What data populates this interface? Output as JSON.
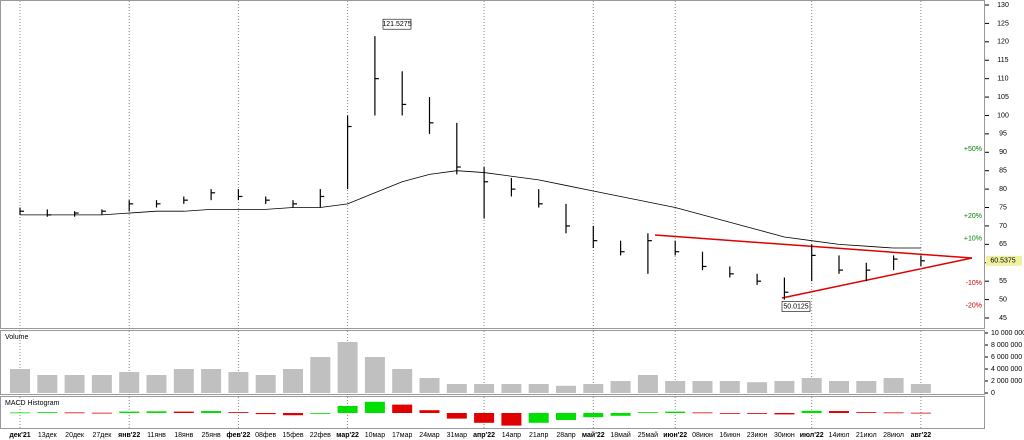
{
  "chart_data": [
    {
      "type": "ohlc",
      "categories": [
        "дек'21",
        "13дек",
        "20дек",
        "27дек",
        "янв'22",
        "11янв",
        "18янв",
        "25янв",
        "фев'22",
        "08фев",
        "15фев",
        "22фев",
        "мар'22",
        "10мар",
        "17мар",
        "24мар",
        "31мар",
        "апр'22",
        "14апр",
        "21апр",
        "28апр",
        "май'22",
        "18май",
        "25май",
        "июн'22",
        "08июн",
        "16июн",
        "23июн",
        "30июн",
        "июл'22",
        "14июл",
        "21июл",
        "28июл",
        "авг'22"
      ],
      "high": [
        75,
        74.5,
        74,
        74.5,
        77,
        77,
        78,
        80,
        80,
        78,
        77,
        80,
        100,
        121.5275,
        112,
        105,
        98,
        86,
        83,
        80,
        76,
        70,
        66,
        68,
        66,
        63,
        59,
        57,
        56,
        65,
        62,
        60,
        62,
        62
      ],
      "low": [
        73,
        72.5,
        72.5,
        73,
        74,
        75,
        76,
        77,
        77,
        76,
        75,
        75,
        80,
        100,
        100,
        95,
        84,
        72,
        78,
        75,
        68,
        64,
        62,
        57,
        62,
        58,
        56,
        54,
        50.0125,
        55,
        57,
        55,
        58,
        59
      ],
      "close": [
        74,
        73,
        73.5,
        74,
        76,
        76,
        77,
        79,
        78,
        77,
        76,
        78,
        97,
        110,
        103,
        98,
        86,
        82,
        80,
        76,
        70,
        66,
        63,
        66,
        63,
        59,
        57,
        55,
        52,
        62,
        58,
        58,
        61,
        60.5375
      ],
      "ma": [
        73,
        73,
        73,
        73,
        73.5,
        74,
        74,
        74.5,
        74.5,
        74.5,
        75,
        75,
        76,
        79,
        82,
        84,
        85,
        84.5,
        83.5,
        82.5,
        81,
        79.5,
        78,
        76.5,
        75,
        73,
        71,
        69,
        67,
        66,
        65,
        64.5,
        64,
        64
      ],
      "color": "#000000",
      "ma_color": "#000000",
      "ylim": [
        45,
        130
      ],
      "yticks": [
        45,
        50,
        55,
        60,
        65,
        70,
        75,
        80,
        85,
        90,
        95,
        100,
        105,
        110,
        115,
        120,
        125,
        130
      ],
      "max_label": 121.5275,
      "min_label": 50.0125,
      "last_price": 60.5375,
      "annotations": [
        {
          "label": "+50%",
          "value": 90.8,
          "color": "#008000"
        },
        {
          "label": "+20%",
          "value": 72.6,
          "color": "#008000"
        },
        {
          "label": "+10%",
          "value": 66.6,
          "color": "#008000"
        },
        {
          "label": "-10%",
          "value": 54.5,
          "color": "#c00000"
        },
        {
          "label": "-20%",
          "value": 48.4,
          "color": "#c00000"
        }
      ]
    },
    {
      "type": "bar",
      "title": "Volume",
      "values": [
        4000000,
        3000000,
        3000000,
        3000000,
        3500000,
        3000000,
        4000000,
        4000000,
        3500000,
        3000000,
        4000000,
        6000000,
        8500000,
        6000000,
        4000000,
        2500000,
        1500000,
        1500000,
        1500000,
        1500000,
        1200000,
        1500000,
        2000000,
        3000000,
        2000000,
        2000000,
        2000000,
        1800000,
        2000000,
        2500000,
        2000000,
        2000000,
        2500000,
        1500000
      ],
      "color": "#c0c0c0",
      "ylim": [
        0,
        10000000
      ],
      "yticks": [
        0,
        {
          "value": 2000000,
          "label": "2 000 000"
        },
        {
          "value": 4000000,
          "label": "4 000 000"
        },
        {
          "value": 6000000,
          "label": "6 000 000"
        },
        {
          "value": 8000000,
          "label": "8 000 000"
        },
        {
          "value": 10000000,
          "label": "10 000 000"
        }
      ]
    },
    {
      "type": "macd",
      "title": "MACD Histogram",
      "values": [
        0.2,
        0.3,
        0.2,
        0.1,
        0.5,
        0.6,
        0.5,
        0.7,
        0.3,
        -0.4,
        -0.8,
        -0.2,
        2.5,
        4,
        3,
        1,
        -2,
        -3.5,
        -4.5,
        -3.5,
        -2.5,
        -1.5,
        -1,
        0.3,
        0.5,
        0.2,
        -0.2,
        -0.3,
        -0.5,
        0.8,
        0.7,
        0.3,
        0.2,
        0.1
      ],
      "up_color": "#00e000",
      "down_color": "#e00000",
      "ylim": [
        -5,
        5
      ]
    }
  ]
}
